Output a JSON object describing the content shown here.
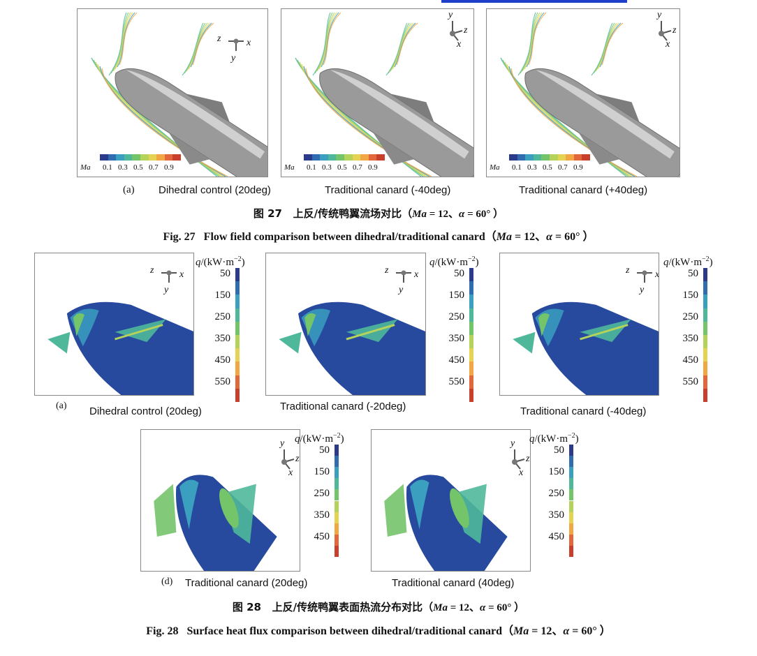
{
  "colors": {
    "cmap": [
      "#2b3a8a",
      "#2f6cb0",
      "#3b9fc0",
      "#4fb89a",
      "#74c46a",
      "#b5d35a",
      "#e6d253",
      "#f0a744",
      "#e2673a",
      "#c8402c"
    ],
    "body": "#9a9a9a",
    "heat_body": "#274a9e"
  },
  "fig27": {
    "panel_label_a": "(a)",
    "panels": [
      {
        "label": "Dihedral control (20deg)"
      },
      {
        "label": "Traditional canard (-40deg)"
      },
      {
        "label": "Traditional canard (+40deg)"
      }
    ],
    "ma_legend": {
      "title": "Ma",
      "ticks": [
        "0.1",
        "0.3",
        "0.5",
        "0.7",
        "0.9"
      ]
    },
    "axes": [
      {
        "a": "z",
        "b": "x",
        "c": "y"
      },
      {
        "a": "y",
        "b": "z",
        "c": "x"
      },
      {
        "a": "y",
        "b": "z",
        "c": "x"
      }
    ],
    "caption_zh": {
      "prefix": "图 27",
      "text": "上反/传统鸭翼流场对比（",
      "ma": "Ma",
      "eq1": " = 12、",
      "alpha": "α",
      "eq2": " = 60° ）"
    },
    "caption_en": {
      "prefix": "Fig. 27",
      "text": "Flow field comparison between dihedral/traditional canard（",
      "ma": "Ma",
      "eq1": " = 12、",
      "alpha": "α",
      "eq2": " = 60° ）"
    }
  },
  "fig28": {
    "panel_label_a": "(a)",
    "panel_label_d": "(d)",
    "row1": [
      {
        "label": "Dihedral control (20deg)"
      },
      {
        "label": "Traditional canard (-20deg)"
      },
      {
        "label": "Traditional canard (-40deg)"
      }
    ],
    "row2": [
      {
        "label": "Traditional canard (20deg)"
      },
      {
        "label": "Traditional canard (40deg)"
      }
    ],
    "cbar_title": {
      "q": "q",
      "unit": "/(kW·m",
      "sup": "−2",
      "close": ")"
    },
    "cbar_ticks_row1": [
      "50",
      "150",
      "250",
      "350",
      "450",
      "550"
    ],
    "cbar_ticks_row2": [
      "50",
      "150",
      "250",
      "350",
      "450"
    ],
    "axes_row1": [
      {
        "a": "z",
        "b": "x",
        "c": "y"
      },
      {
        "a": "z",
        "b": "x",
        "c": "y"
      },
      {
        "a": "z",
        "b": "x",
        "c": "y"
      }
    ],
    "axes_row2": [
      {
        "a": "y",
        "b": "z",
        "c": "x"
      },
      {
        "a": "y",
        "b": "z",
        "c": "x"
      }
    ],
    "caption_zh": {
      "prefix": "图 28",
      "text": "上反/传统鸭翼表面热流分布对比（",
      "ma": "Ma",
      "eq1": " = 12、",
      "alpha": "α",
      "eq2": " = 60° ）"
    },
    "caption_en": {
      "prefix": "Fig. 28",
      "text": "Surface heat flux comparison between dihedral/traditional canard（",
      "ma": "Ma",
      "eq1": " = 12、",
      "alpha": "α",
      "eq2": " = 60° ）"
    }
  }
}
